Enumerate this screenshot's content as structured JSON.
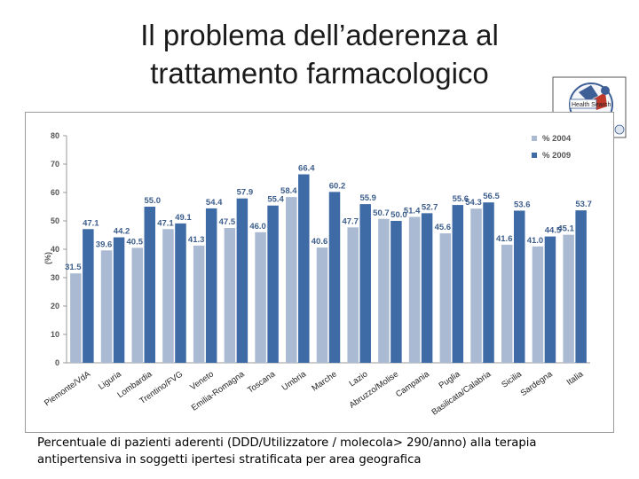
{
  "slide": {
    "title_line1": "Il problema dell’aderenza al",
    "title_line2": "trattamento farmacologico",
    "caption_line1": "Percentuale di pazienti aderenti (DDD/Utilizzatore / molecola> 290/anno) alla terapia",
    "caption_line2": "antipertensiva in soggetti ipertesi stratificata per area geografica"
  },
  "logo": {
    "icon": "health-search-logo-icon",
    "text": "Health Search"
  },
  "chart_data": {
    "type": "bar",
    "title": "",
    "xlabel": "",
    "ylabel": "(%)",
    "ylim": [
      0,
      80
    ],
    "yticks": [
      0,
      10,
      20,
      30,
      40,
      50,
      60,
      70,
      80
    ],
    "grid": false,
    "legend_position": "top-right",
    "categories": [
      "Piemonte/VdA",
      "Liguria",
      "Lombardia",
      "Trentino/FVG",
      "Veneto",
      "Emilia-Romagna",
      "Toscana",
      "Umbria",
      "Marche",
      "Lazio",
      "Abruzzo/Molise",
      "Campania",
      "Puglia",
      "Basilicata/Calabria",
      "Sicilia",
      "Sardegna",
      "Italia"
    ],
    "series": [
      {
        "name": "% 2004",
        "color": "#a9bad2",
        "values": [
          31.5,
          39.6,
          40.5,
          47.1,
          41.3,
          47.5,
          46.0,
          58.4,
          40.6,
          47.7,
          50.7,
          51.4,
          45.6,
          54.3,
          41.6,
          41.0,
          45.1
        ]
      },
      {
        "name": "% 2009",
        "color": "#3e6aa6",
        "values": [
          47.1,
          44.2,
          55.0,
          49.1,
          54.4,
          57.9,
          55.4,
          66.4,
          60.2,
          55.9,
          50.0,
          52.7,
          55.6,
          56.5,
          53.6,
          44.5,
          53.7
        ]
      }
    ],
    "label_color": "#3d5e8c"
  }
}
